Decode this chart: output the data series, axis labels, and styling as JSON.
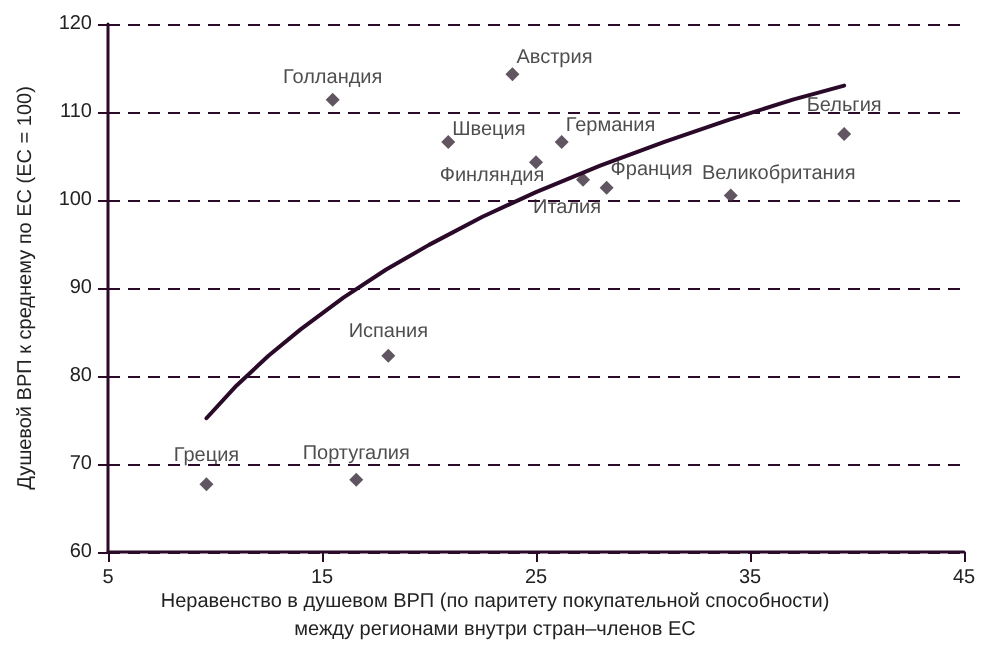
{
  "chart_data": {
    "type": "scatter",
    "xlabel": "Неравенство в душевом ВРП (по паритету покупательной способности)\nмежду регионами внутри стран–членов ЕС",
    "ylabel": "Душевой ВРП к среднему по ЕС (ЕС = 100)",
    "xlim": [
      5,
      45
    ],
    "xticks": [
      5,
      15,
      25,
      35,
      45
    ],
    "ylim": [
      60,
      120
    ],
    "yticks": [
      60,
      70,
      80,
      90,
      100,
      110,
      120
    ],
    "grid": "y",
    "marker": "diamond",
    "series": [
      {
        "color": "#3a2a3a",
        "x": [
          15.5,
          23.9,
          20.9,
          26.2,
          25,
          27.2,
          28.3,
          34.1,
          39.4,
          18.1,
          9.6,
          16.6
        ],
        "values": [
          111.4,
          114.3,
          106.6,
          106.6,
          104.3,
          102.3,
          101.4,
          100.5,
          107.5,
          82.3,
          67.7,
          68.2
        ]
      },
      {
        "type": "line",
        "color": "#2a0a28",
        "marker": "none",
        "x": [
          9.6,
          11,
          12.5,
          14,
          16,
          18,
          20,
          22.5,
          25,
          28,
          31,
          34,
          37,
          39.4
        ],
        "values": [
          75.2,
          78.9,
          82.3,
          85.3,
          88.9,
          92.1,
          94.9,
          98.1,
          100.9,
          103.9,
          106.6,
          109.1,
          111.4,
          113.0
        ]
      }
    ],
    "annotations": [
      {
        "text": "Голландия",
        "x": 15.5,
        "y": 111.4
      },
      {
        "text": "Австрия",
        "x": 23.9,
        "y": 114.3
      },
      {
        "text": "Швеция",
        "x": 20.9,
        "y": 106.6
      },
      {
        "text": "Германия",
        "x": 26.2,
        "y": 106.6
      },
      {
        "text": "Финляндия",
        "x": 25,
        "y": 104.3
      },
      {
        "text": "Италия",
        "x": 27.2,
        "y": 102.3
      },
      {
        "text": "Франция",
        "x": 28.3,
        "y": 101.4
      },
      {
        "text": "Великобритания",
        "x": 34.1,
        "y": 100.5
      },
      {
        "text": "Бельгия",
        "x": 39.4,
        "y": 107.5
      },
      {
        "text": "Испания",
        "x": 18.1,
        "y": 82.3
      },
      {
        "text": "Греция",
        "x": 9.6,
        "y": 67.7
      },
      {
        "text": "Португалия",
        "x": 16.6,
        "y": 68.2
      }
    ]
  }
}
